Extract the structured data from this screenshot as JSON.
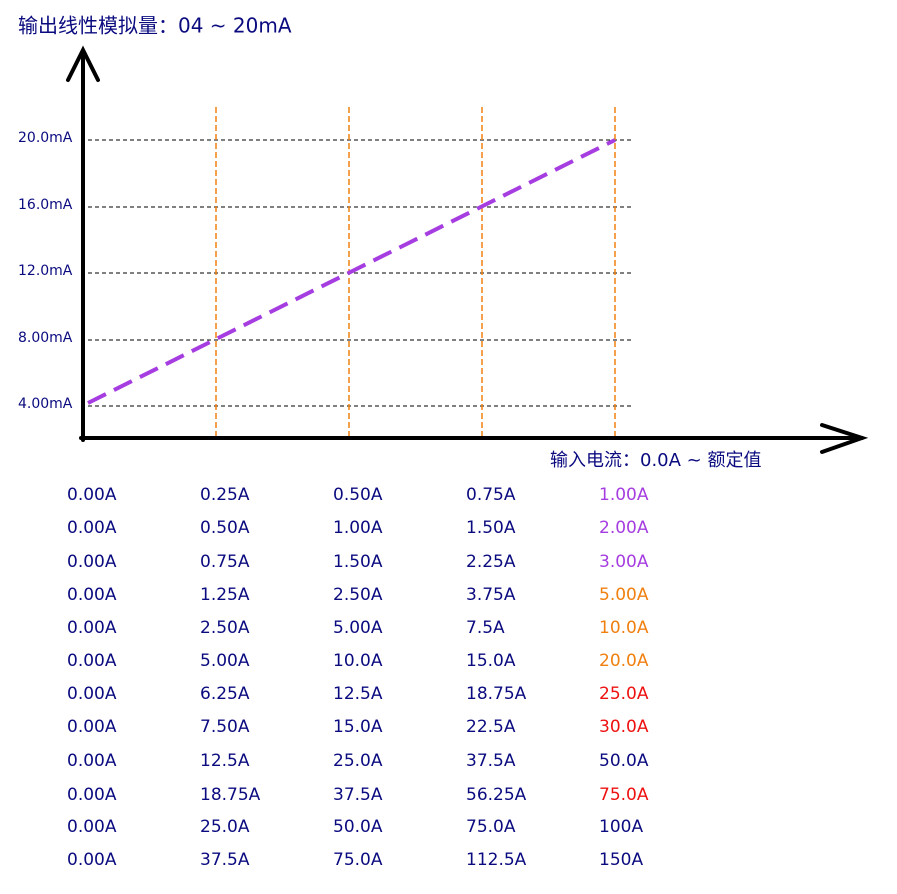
{
  "title": "输出线性模拟量：04 ~ 20mA",
  "y_labels": [
    "20.0mA",
    "16.0mA",
    "12.0mA",
    "8.00mA",
    "4.00mA"
  ],
  "x_axis_label": "输入电流：0.0A ~ 额定值",
  "table": {
    "rows": [
      [
        "0.00A",
        "0.25A",
        "0.50A",
        "0.75A",
        "1.00A"
      ],
      [
        "0.00A",
        "0.50A",
        "1.00A",
        "1.50A",
        "2.00A"
      ],
      [
        "0.00A",
        "0.75A",
        "1.50A",
        "2.25A",
        "3.00A"
      ],
      [
        "0.00A",
        "1.25A",
        "2.50A",
        "3.75A",
        "5.00A"
      ],
      [
        "0.00A",
        "2.50A",
        "5.00A",
        "7.5A",
        "10.0A"
      ],
      [
        "0.00A",
        "5.00A",
        "10.0A",
        "15.0A",
        "20.0A"
      ],
      [
        "0.00A",
        "6.25A",
        "12.5A",
        "18.75A",
        "25.0A"
      ],
      [
        "0.00A",
        "7.50A",
        "15.0A",
        "22.5A",
        "30.0A"
      ],
      [
        "0.00A",
        "12.5A",
        "25.0A",
        "37.5A",
        "50.0A"
      ],
      [
        "0.00A",
        "18.75A",
        "37.5A",
        "56.25A",
        "75.0A"
      ],
      [
        "0.00A",
        "25.0A",
        "50.0A",
        "75.0A",
        "100A"
      ],
      [
        "0.00A",
        "37.5A",
        "75.0A",
        "112.5A",
        "150A"
      ]
    ],
    "last_column_colors": [
      "#a63de0",
      "#a63de0",
      "#a63de0",
      "#f08010",
      "#f08010",
      "#f08010",
      "#ee1111",
      "#ee1111",
      "#0b0b80",
      "#ee1111",
      "#0b0b80",
      "#0b0b80"
    ]
  }
}
